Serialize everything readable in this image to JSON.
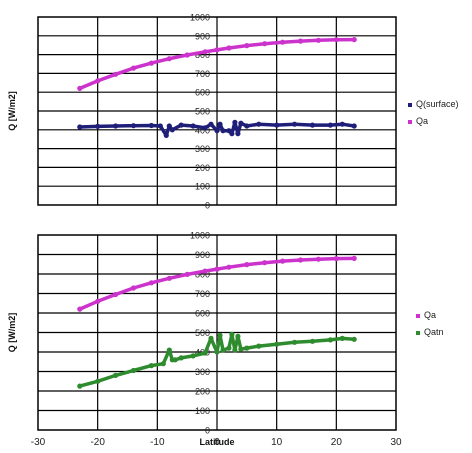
{
  "chart_data": [
    {
      "type": "scatter",
      "ylabel": "Q [W/m2]",
      "xlabel": "",
      "xlim": [
        -30,
        30
      ],
      "ylim": [
        0,
        1000
      ],
      "yticks": [
        "0",
        "100",
        "200",
        "300",
        "400",
        "500",
        "600",
        "700",
        "800",
        "900",
        "1000"
      ],
      "grid": true,
      "legend_position": "right",
      "series": [
        {
          "name": "Q(surface)",
          "color": "#1f1f7a",
          "x": [
            -23,
            -20,
            -17,
            -14,
            -11,
            -9.5,
            -8.5,
            -8,
            -7.5,
            -6,
            -4,
            -2,
            -1,
            0,
            0.5,
            1,
            2,
            2.5,
            3,
            3.5,
            4,
            5,
            7,
            10,
            13,
            16,
            19,
            21,
            23
          ],
          "y": [
            415,
            418,
            420,
            422,
            423,
            420,
            370,
            420,
            400,
            425,
            420,
            410,
            430,
            395,
            430,
            395,
            395,
            380,
            440,
            380,
            435,
            420,
            430,
            425,
            430,
            425,
            425,
            430,
            420
          ]
        },
        {
          "name": "Qa",
          "color": "#cc33cc",
          "x": [
            -23,
            -20,
            -17,
            -14,
            -11,
            -8,
            -5,
            -2,
            0,
            2,
            5,
            8,
            11,
            14,
            17,
            20,
            23
          ],
          "y": [
            620,
            660,
            695,
            728,
            755,
            778,
            798,
            815,
            825,
            835,
            848,
            858,
            866,
            872,
            876,
            879,
            880
          ]
        }
      ]
    },
    {
      "type": "scatter",
      "ylabel": "Q [W/m2]",
      "xlabel": "Latitude",
      "xlim": [
        -30,
        30
      ],
      "ylim": [
        0,
        1000
      ],
      "xticks": [
        "-30",
        "-20",
        "-10",
        "0",
        "10",
        "20",
        "30"
      ],
      "yticks": [
        "0",
        "100",
        "200",
        "300",
        "400",
        "500",
        "600",
        "700",
        "800",
        "900",
        "1000"
      ],
      "grid": true,
      "legend_position": "right",
      "series": [
        {
          "name": "Qa",
          "color": "#cc33cc",
          "x": [
            -23,
            -20,
            -17,
            -14,
            -11,
            -8,
            -5,
            -2,
            0,
            2,
            5,
            8,
            11,
            14,
            17,
            20,
            23
          ],
          "y": [
            620,
            660,
            695,
            728,
            755,
            778,
            798,
            815,
            825,
            835,
            848,
            858,
            866,
            872,
            876,
            879,
            880
          ]
        },
        {
          "name": "Qatn",
          "color": "#2e8b2e",
          "x": [
            -23,
            -20,
            -17,
            -14,
            -11,
            -9,
            -8,
            -7.5,
            -7,
            -6,
            -4,
            -2,
            -1,
            0,
            0.5,
            1,
            2,
            2.5,
            3,
            3.5,
            4,
            5,
            7,
            10,
            13,
            16,
            19,
            21,
            23
          ],
          "y": [
            225,
            250,
            280,
            305,
            330,
            340,
            410,
            360,
            360,
            370,
            380,
            395,
            470,
            400,
            485,
            410,
            420,
            490,
            410,
            480,
            415,
            420,
            430,
            440,
            450,
            455,
            462,
            470,
            465
          ]
        }
      ]
    }
  ]
}
